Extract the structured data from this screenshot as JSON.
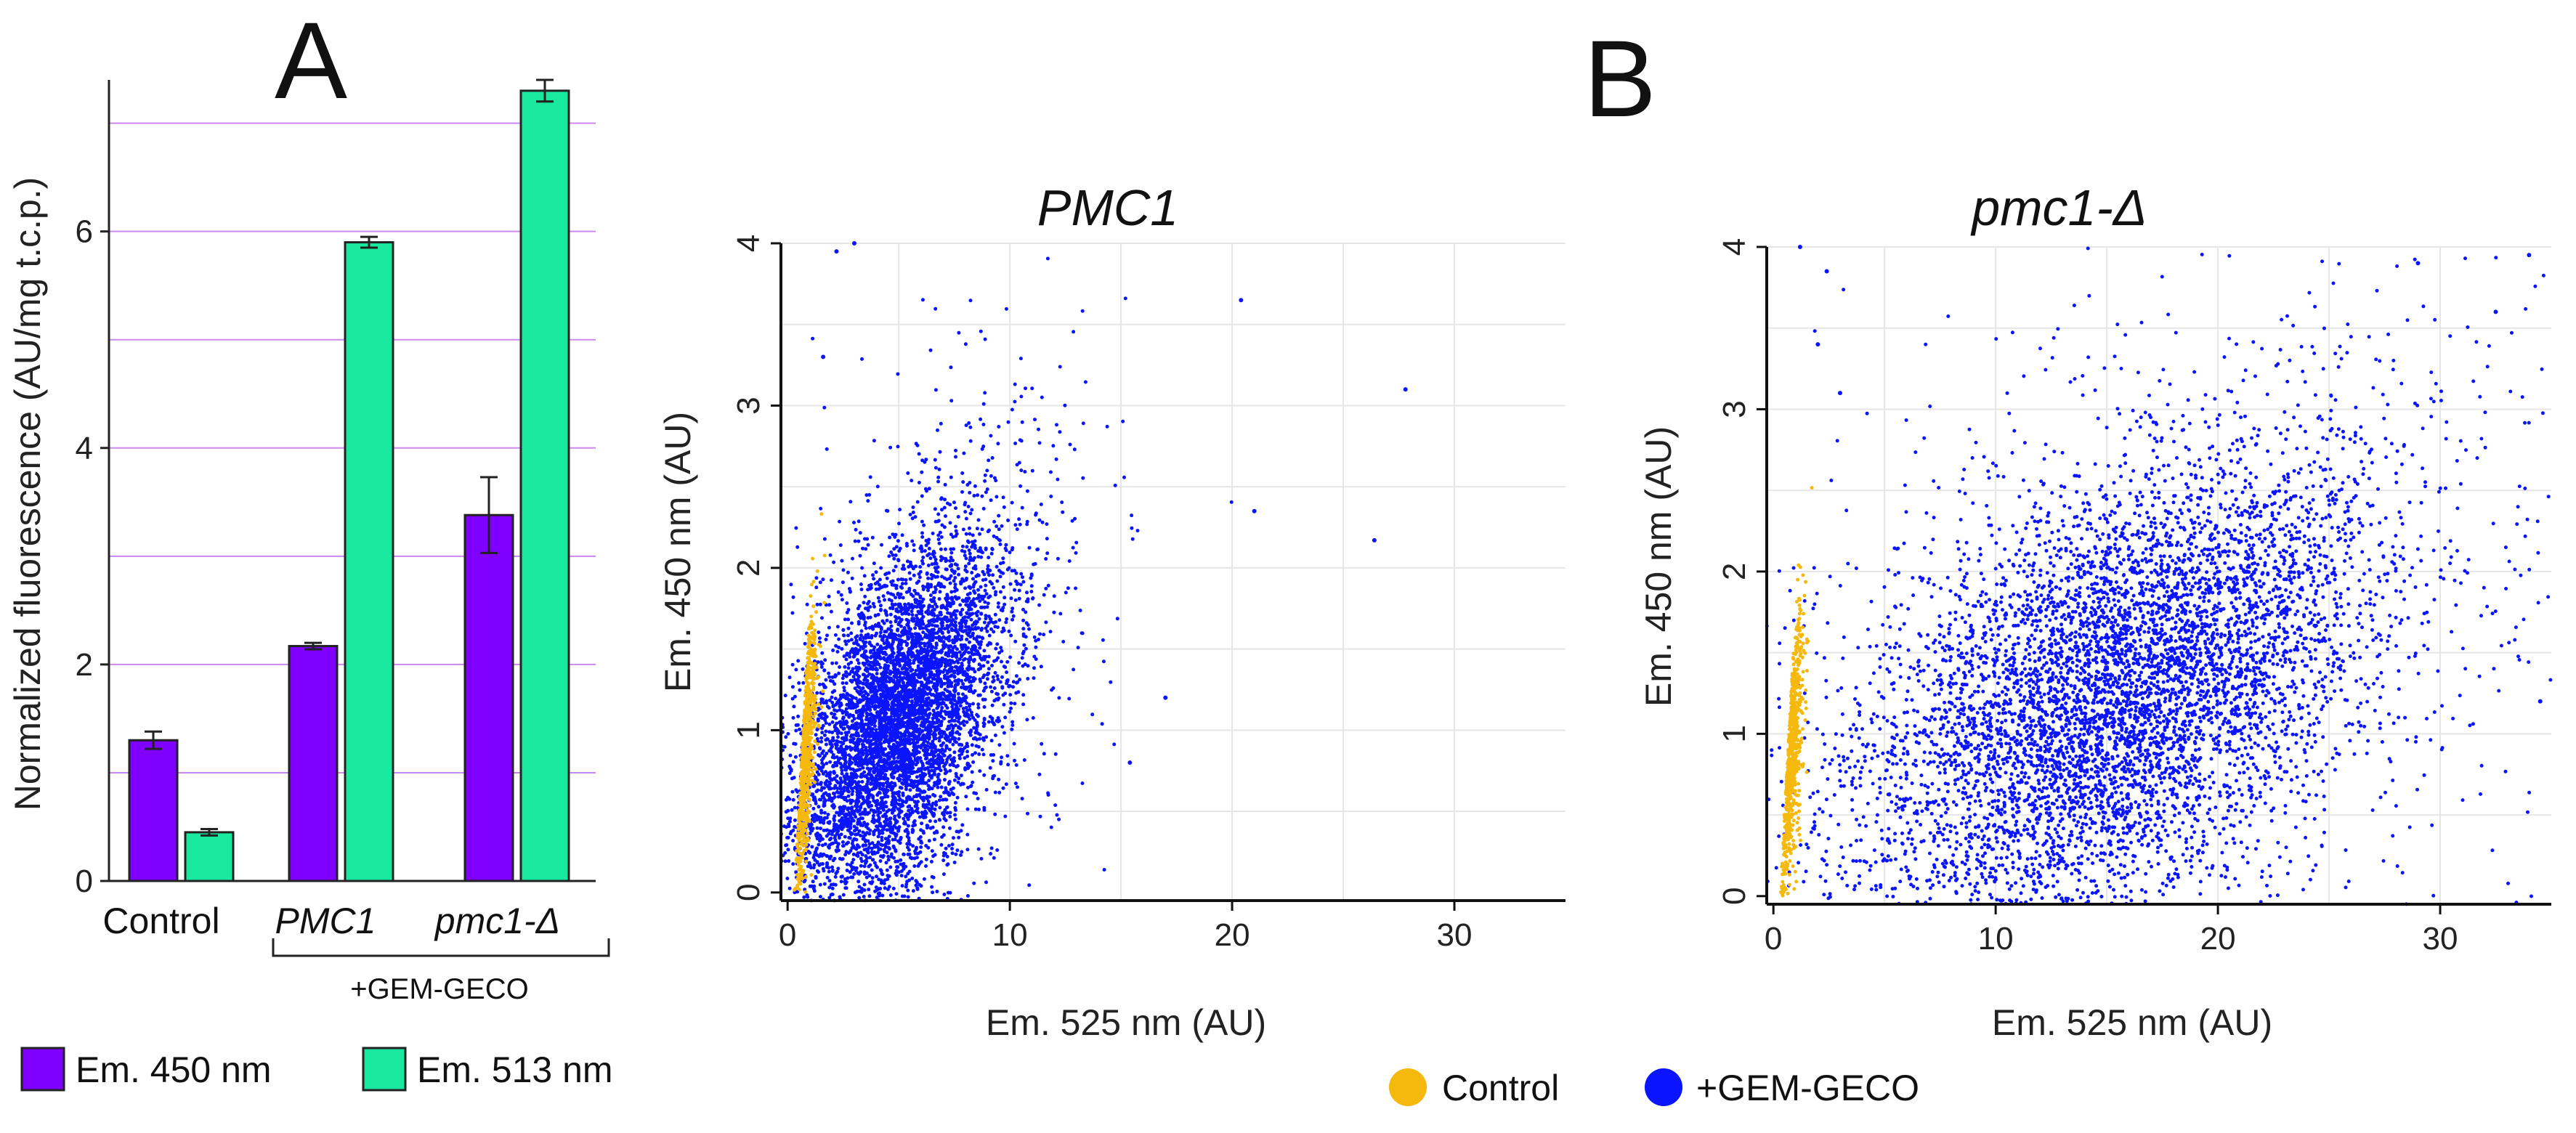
{
  "panels": {
    "a": "A",
    "b": "B"
  },
  "group_label": "+GEM-GECO",
  "colors": {
    "em450": "#7f00ff",
    "em513": "#19e8a0",
    "control": "#f5b80c",
    "gemgeco": "#0a14ff",
    "hgrid": "#cc88ee",
    "sgrid": "#e6e6e6"
  },
  "legend_a": [
    "Em. 450 nm",
    "Em. 513 nm"
  ],
  "legend_b": [
    "Control",
    "+GEM-GECO"
  ],
  "chart_data": [
    {
      "type": "bar",
      "panel": "A",
      "title": "",
      "ylabel": "Normalized fluorescence (AU/mg t.c.p.)",
      "xlabel": "",
      "ylim": [
        0,
        7.4
      ],
      "yticks": [
        0,
        2,
        4,
        6
      ],
      "gridlines": [
        1,
        2,
        3,
        4,
        5,
        6,
        7
      ],
      "categories": [
        "Control",
        "PMC1",
        "pmc1-Δ"
      ],
      "series": [
        {
          "name": "Em. 450 nm",
          "values": [
            1.3,
            2.17,
            3.38
          ],
          "errors": [
            0.08,
            0.03,
            0.35
          ]
        },
        {
          "name": "Em. 513 nm",
          "values": [
            0.45,
            5.9,
            7.3
          ],
          "errors": [
            0.03,
            0.05,
            0.1
          ]
        }
      ]
    },
    {
      "type": "scatter",
      "panel": "B-left",
      "title": "PMC1",
      "xlabel": "Em. 525 nm (AU)",
      "ylabel": "Em. 450 nm (AU)",
      "xlim": [
        -0.3,
        35
      ],
      "ylim": [
        -0.05,
        4
      ],
      "xticks": [
        0,
        10,
        20,
        30
      ],
      "yticks": [
        0,
        1,
        2,
        3,
        4
      ],
      "series": [
        {
          "name": "Control",
          "center": [
            0.6,
            0.85
          ],
          "spread": [
            0.25,
            0.35
          ],
          "count": 700,
          "slope": 0.0
        },
        {
          "name": "+GEM-GECO",
          "center": [
            5.0,
            1.05
          ],
          "spread": [
            2.2,
            0.45
          ],
          "count": 6500,
          "slope": 0.12
        }
      ],
      "outliers": [
        [
          27.8,
          3.1
        ],
        [
          26.4,
          2.17
        ],
        [
          21.0,
          2.35
        ],
        [
          20.4,
          3.65
        ],
        [
          17.0,
          1.2
        ],
        [
          15.4,
          0.8
        ],
        [
          3.0,
          4.0
        ],
        [
          2.2,
          3.95
        ],
        [
          1.6,
          3.3
        ]
      ]
    },
    {
      "type": "scatter",
      "panel": "B-right",
      "title": "pmc1-Δ",
      "xlabel": "Em. 525 nm (AU)",
      "ylabel": "Em. 450 nm (AU)",
      "xlim": [
        -0.3,
        35
      ],
      "ylim": [
        -0.05,
        4
      ],
      "xticks": [
        0,
        10,
        20,
        30
      ],
      "yticks": [
        0,
        1,
        2,
        3,
        4
      ],
      "series": [
        {
          "name": "Control",
          "center": [
            0.6,
            0.85
          ],
          "spread": [
            0.25,
            0.38
          ],
          "count": 700,
          "slope": 0.0
        },
        {
          "name": "+GEM-GECO",
          "center": [
            15.5,
            1.25
          ],
          "spread": [
            5.5,
            0.62
          ],
          "count": 7000,
          "slope": 0.06
        }
      ],
      "outliers": [
        [
          34.0,
          3.95
        ],
        [
          32.5,
          3.6
        ],
        [
          29.0,
          3.9
        ],
        [
          2.4,
          3.85
        ],
        [
          2.0,
          3.4
        ],
        [
          3.0,
          3.1
        ],
        [
          1.2,
          4.0
        ],
        [
          34.5,
          1.2
        ]
      ]
    }
  ]
}
